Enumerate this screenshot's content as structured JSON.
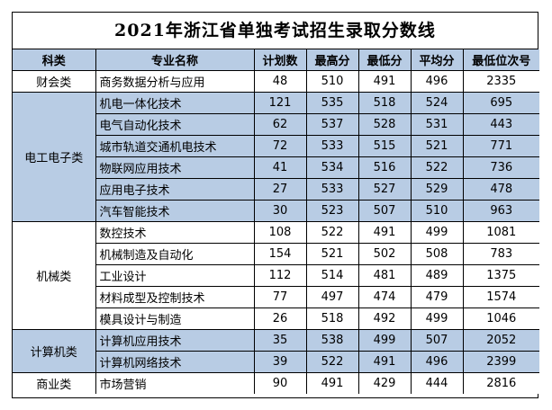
{
  "title": "2021年浙江省单独考试招生录取分数线",
  "headers": [
    "科类",
    "专业名称",
    "计划数",
    "最高分",
    "最低分",
    "平均分",
    "最低位次号"
  ],
  "groups": [
    {
      "category": "财会类",
      "shade": "white",
      "rows": [
        {
          "major": "商务数据分析与应用",
          "plan": "48",
          "max": "510",
          "min": "491",
          "avg": "496",
          "rank": "2335"
        }
      ]
    },
    {
      "category": "电工电子类",
      "shade": "blue",
      "rows": [
        {
          "major": "机电一体化技术",
          "plan": "121",
          "max": "535",
          "min": "518",
          "avg": "524",
          "rank": "695"
        },
        {
          "major": "电气自动化技术",
          "plan": "62",
          "max": "537",
          "min": "528",
          "avg": "531",
          "rank": "443"
        },
        {
          "major": "城市轨道交通机电技术",
          "plan": "72",
          "max": "533",
          "min": "515",
          "avg": "521",
          "rank": "771"
        },
        {
          "major": "物联网应用技术",
          "plan": "41",
          "max": "534",
          "min": "516",
          "avg": "522",
          "rank": "736"
        },
        {
          "major": "应用电子技术",
          "plan": "27",
          "max": "533",
          "min": "527",
          "avg": "529",
          "rank": "478"
        },
        {
          "major": "汽车智能技术",
          "plan": "30",
          "max": "523",
          "min": "507",
          "avg": "510",
          "rank": "963"
        }
      ]
    },
    {
      "category": "机械类",
      "shade": "white",
      "rows": [
        {
          "major": "数控技术",
          "plan": "108",
          "max": "522",
          "min": "491",
          "avg": "499",
          "rank": "1081"
        },
        {
          "major": "机械制造及自动化",
          "plan": "154",
          "max": "521",
          "min": "502",
          "avg": "508",
          "rank": "783"
        },
        {
          "major": "工业设计",
          "plan": "112",
          "max": "514",
          "min": "481",
          "avg": "489",
          "rank": "1375"
        },
        {
          "major": "材料成型及控制技术",
          "plan": "77",
          "max": "497",
          "min": "474",
          "avg": "479",
          "rank": "1574"
        },
        {
          "major": "模具设计与制造",
          "plan": "26",
          "max": "518",
          "min": "492",
          "avg": "499",
          "rank": "1046"
        }
      ]
    },
    {
      "category": "计算机类",
      "shade": "blue",
      "rows": [
        {
          "major": "计算机应用技术",
          "plan": "35",
          "max": "538",
          "min": "499",
          "avg": "507",
          "rank": "2052"
        },
        {
          "major": "计算机网络技术",
          "plan": "39",
          "max": "522",
          "min": "491",
          "avg": "496",
          "rank": "2399"
        }
      ]
    },
    {
      "category": "商业类",
      "shade": "white",
      "rows": [
        {
          "major": "市场营销",
          "plan": "90",
          "max": "491",
          "min": "429",
          "avg": "444",
          "rank": "2816"
        }
      ]
    }
  ]
}
